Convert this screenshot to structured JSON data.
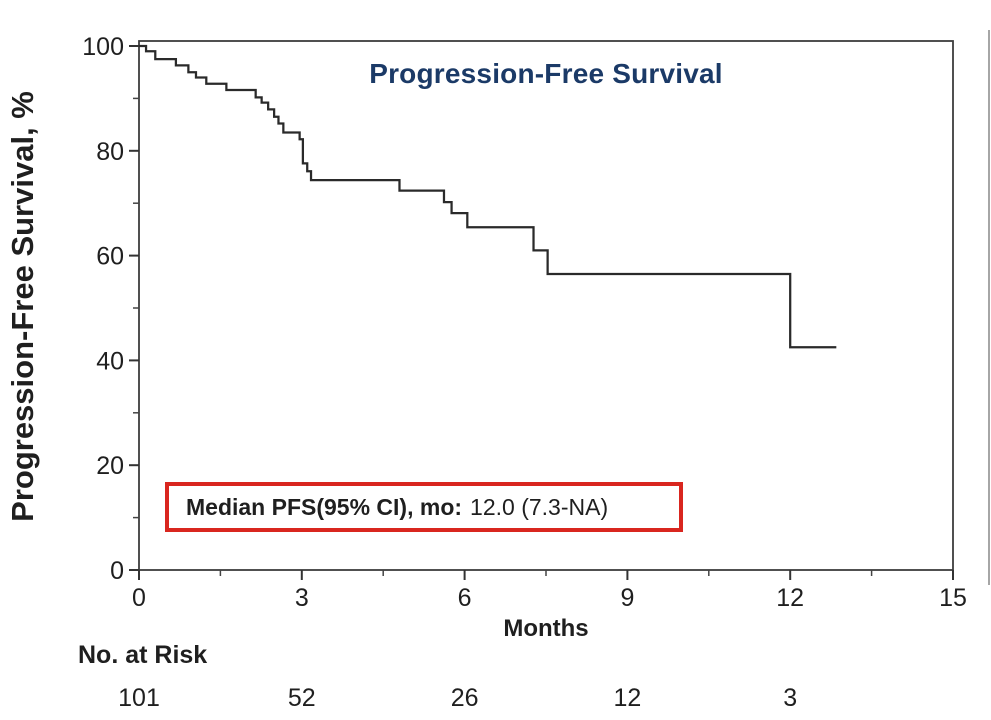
{
  "page": {
    "background": "#ffffff"
  },
  "chart_data": {
    "type": "line",
    "subtype": "kaplan-meier-step",
    "title": "Progression-Free Survival",
    "title_color": "#1b3a67",
    "xlabel": "Months",
    "ylabel": "Progression-Free Survival, %",
    "xlim": [
      0,
      15
    ],
    "ylim": [
      0,
      100
    ],
    "x_ticks": [
      0,
      3,
      6,
      9,
      12,
      15
    ],
    "x_minor_ticks": [
      1.5,
      4.5,
      7.5,
      10.5,
      13.5
    ],
    "y_ticks": [
      0,
      20,
      40,
      60,
      80,
      100
    ],
    "y_minor_ticks": [
      10,
      30,
      50,
      70,
      90
    ],
    "grid": "off",
    "legend": "none",
    "curve_color": "#2a2a2a",
    "axis_color": "#3d3d3d",
    "km_steps": [
      [
        0,
        100
      ],
      [
        0.13,
        99.0
      ],
      [
        0.3,
        97.5
      ],
      [
        0.68,
        96.3
      ],
      [
        0.91,
        95.0
      ],
      [
        1.05,
        94.0
      ],
      [
        1.24,
        92.8
      ],
      [
        1.61,
        91.6
      ],
      [
        2.15,
        90.2
      ],
      [
        2.26,
        89.2
      ],
      [
        2.38,
        87.9
      ],
      [
        2.49,
        86.5
      ],
      [
        2.57,
        85.2
      ],
      [
        2.66,
        83.5
      ],
      [
        2.96,
        82.2
      ],
      [
        3.02,
        77.6
      ],
      [
        3.1,
        76.1
      ],
      [
        3.17,
        74.4
      ],
      [
        4.8,
        72.4
      ],
      [
        5.62,
        70.2
      ],
      [
        5.76,
        68.1
      ],
      [
        6.05,
        65.4
      ],
      [
        7.27,
        61.0
      ],
      [
        7.53,
        56.5
      ],
      [
        12.0,
        42.5
      ]
    ],
    "end_time": 12.85,
    "annotation": {
      "label": "Median PFS(95% CI), mo:",
      "value": "12.0 (7.3-NA)",
      "border_color": "#d9261f"
    },
    "at_risk": {
      "label": "No. at Risk",
      "times": [
        0,
        3,
        6,
        9,
        12
      ],
      "counts": [
        101,
        52,
        26,
        12,
        3
      ]
    }
  }
}
